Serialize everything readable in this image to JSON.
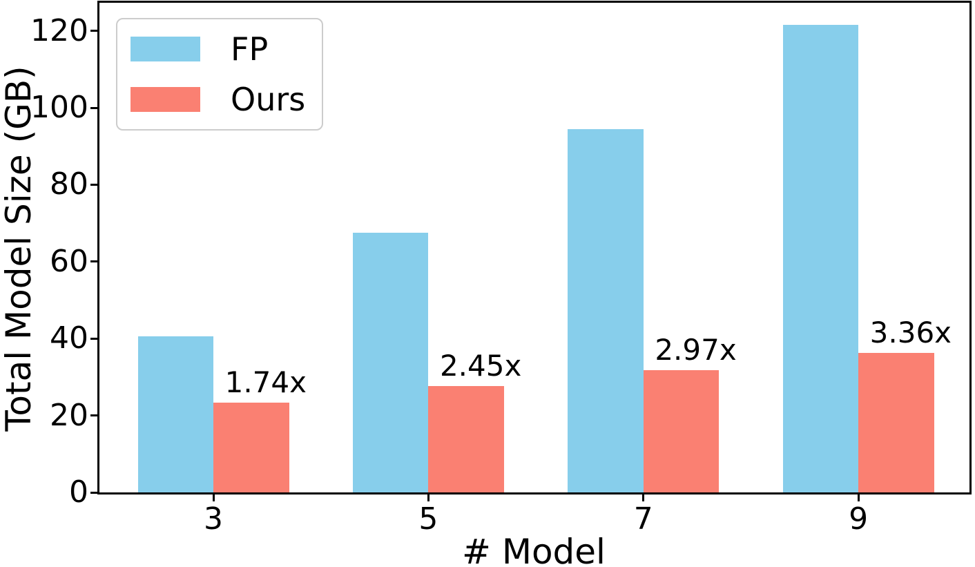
{
  "chart_data": {
    "type": "bar",
    "title": "",
    "xlabel": "# Model",
    "ylabel": "Total Model Size (GB)",
    "categories": [
      "3",
      "5",
      "7",
      "9"
    ],
    "series": [
      {
        "name": "FP",
        "color": "#87CEEB",
        "values": [
          40.5,
          67.5,
          94.5,
          121.5
        ]
      },
      {
        "name": "Ours",
        "color": "#FA8072",
        "values": [
          23.3,
          27.6,
          31.8,
          36.2
        ]
      }
    ],
    "bar_annotations": {
      "series": "Ours",
      "labels": [
        "1.74x",
        "2.45x",
        "2.97x",
        "3.36x"
      ]
    },
    "y_ticks": [
      0,
      20,
      40,
      60,
      80,
      100,
      120
    ],
    "ylim": [
      0,
      127.3
    ],
    "grid": false,
    "legend_position": "upper left",
    "axis_color": "#000000",
    "text_color": "#000000",
    "background_color": "#FFFFFF",
    "legend_border_color": "#CCCCCC"
  }
}
